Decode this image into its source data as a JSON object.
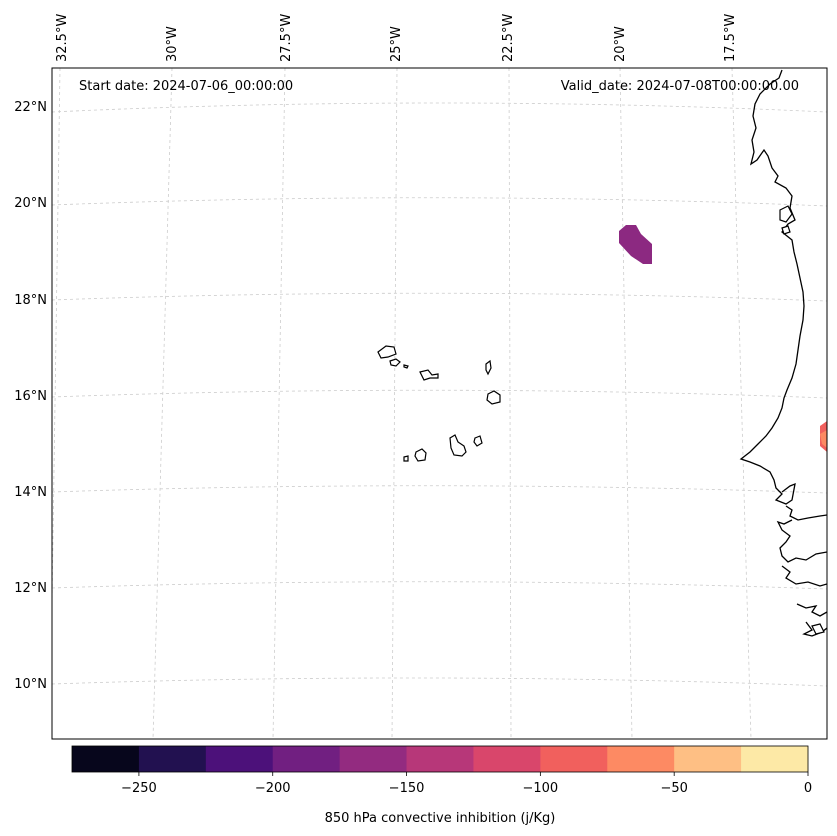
{
  "header": {
    "start_date": "Start date: 2024-07-06_00:00:00",
    "valid_date": "Valid_date: 2024-07-08T00:00:00.00"
  },
  "map": {
    "longitude_labels": [
      "32.5°W",
      "30°W",
      "27.5°W",
      "25°W",
      "22.5°W",
      "20°W",
      "17.5°W"
    ],
    "latitude_labels": [
      "22°N",
      "20°N",
      "18°N",
      "16°N",
      "14°N",
      "12°N",
      "10°N"
    ],
    "gridlines": true,
    "projection": "conic (curved graticule)"
  },
  "field": {
    "variable": "850 hPa convective inhibition (j/Kg)",
    "patches": [
      {
        "location": "near 19.3°N 19.8°W",
        "value_range": [
          -175,
          -150
        ],
        "color": "#8c2981"
      },
      {
        "location": "near 15.2°N 16.8°W (map edge)",
        "value_range": [
          -100,
          -50
        ],
        "color": "#f1605d"
      }
    ]
  },
  "colorbar": {
    "label": "850 hPa convective inhibition (j/Kg)",
    "bins": [
      -275,
      -250,
      -225,
      -200,
      -175,
      -150,
      -125,
      -100,
      -75,
      -50,
      -25,
      0
    ],
    "colors": [
      "#07061c",
      "#221150",
      "#4c117a",
      "#711f81",
      "#932b80",
      "#b73779",
      "#d9466b",
      "#f1605d",
      "#fd8a63",
      "#febf84",
      "#fde9a6"
    ],
    "tick_labels": [
      "−250",
      "−200",
      "−150",
      "−100",
      "−50",
      "0"
    ],
    "tick_values": [
      -250,
      -200,
      -150,
      -100,
      -50,
      0
    ]
  }
}
